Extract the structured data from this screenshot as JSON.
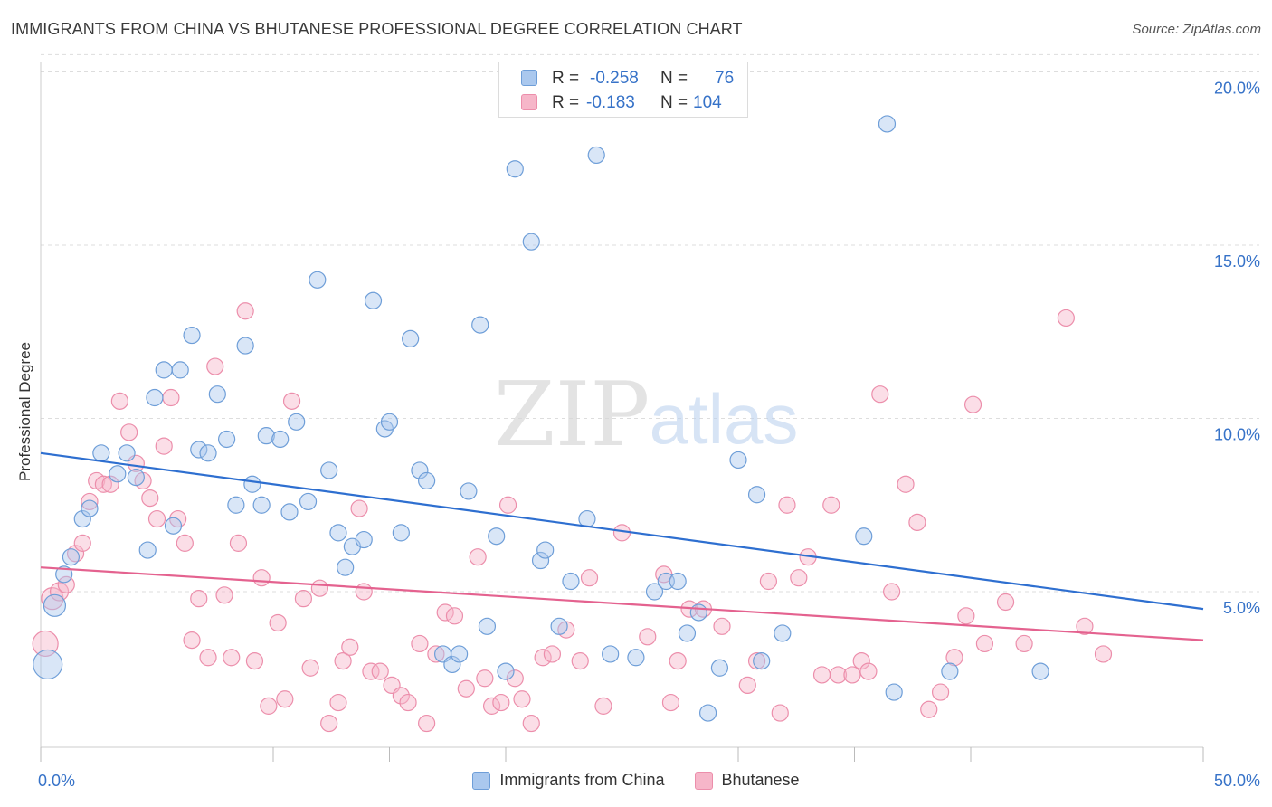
{
  "title": "IMMIGRANTS FROM CHINA VS BHUTANESE PROFESSIONAL DEGREE CORRELATION CHART",
  "source": "Source: ZipAtlas.com",
  "watermark": {
    "zip": "ZIP",
    "atlas": "atlas"
  },
  "stats_legend": {
    "r_label": "R =",
    "n_label": "N =",
    "rows": [
      {
        "r": "-0.258",
        "n": "76"
      },
      {
        "r": "-0.183",
        "n": "104"
      }
    ]
  },
  "colors": {
    "blue_fill": "#aac8ee",
    "blue_stroke": "#6e9ed8",
    "blue_line": "#2e6fd0",
    "pink_fill": "#f6b6c9",
    "pink_stroke": "#ec8eab",
    "pink_line": "#e4628f",
    "tick_label": "#3672c8",
    "grid": "#dddddd"
  },
  "chart_data": {
    "type": "scatter",
    "title": "IMMIGRANTS FROM CHINA VS BHUTANESE PROFESSIONAL DEGREE CORRELATION CHART",
    "xlabel": "",
    "ylabel": "Professional Degree",
    "xlim": [
      0,
      50
    ],
    "ylim": [
      0,
      20.5
    ],
    "x_tick_labels": [
      "0.0%",
      "50.0%"
    ],
    "y_ticks": [
      5,
      10,
      15,
      20
    ],
    "y_tick_labels": [
      "5.0%",
      "10.0%",
      "15.0%",
      "20.0%"
    ],
    "grid": "horizontal dashed",
    "legend_position": "bottom-center",
    "series": [
      {
        "name": "Immigrants from China",
        "trend": {
          "x": [
            0,
            50
          ],
          "y": [
            9.0,
            4.5
          ]
        },
        "points": [
          [
            0.3,
            2.9,
            16
          ],
          [
            0.6,
            4.6,
            12
          ],
          [
            1.0,
            5.5,
            9
          ],
          [
            1.3,
            6.0,
            9
          ],
          [
            1.8,
            7.1,
            9
          ],
          [
            2.1,
            7.4,
            9
          ],
          [
            2.6,
            9.0,
            9
          ],
          [
            3.3,
            8.4,
            9
          ],
          [
            3.7,
            9.0,
            9
          ],
          [
            4.1,
            8.3,
            9
          ],
          [
            4.6,
            6.2,
            9
          ],
          [
            4.9,
            10.6,
            9
          ],
          [
            5.3,
            11.4,
            9
          ],
          [
            5.7,
            6.9,
            9
          ],
          [
            6.0,
            11.4,
            9
          ],
          [
            6.5,
            12.4,
            9
          ],
          [
            6.8,
            9.1,
            9
          ],
          [
            7.2,
            9.0,
            9
          ],
          [
            7.6,
            10.7,
            9
          ],
          [
            8.0,
            9.4,
            9
          ],
          [
            8.4,
            7.5,
            9
          ],
          [
            8.8,
            12.1,
            9
          ],
          [
            9.1,
            8.1,
            9
          ],
          [
            9.5,
            7.5,
            9
          ],
          [
            9.7,
            9.5,
            9
          ],
          [
            10.3,
            9.4,
            9
          ],
          [
            10.7,
            7.3,
            9
          ],
          [
            11.0,
            9.9,
            9
          ],
          [
            11.5,
            7.6,
            9
          ],
          [
            11.9,
            14.0,
            9
          ],
          [
            12.4,
            8.5,
            9
          ],
          [
            12.8,
            6.7,
            9
          ],
          [
            13.1,
            5.7,
            9
          ],
          [
            13.4,
            6.3,
            9
          ],
          [
            13.9,
            6.5,
            9
          ],
          [
            14.3,
            13.4,
            9
          ],
          [
            14.8,
            9.7,
            9
          ],
          [
            15.0,
            9.9,
            9
          ],
          [
            15.5,
            6.7,
            9
          ],
          [
            15.9,
            12.3,
            9
          ],
          [
            16.3,
            8.5,
            9
          ],
          [
            16.6,
            8.2,
            9
          ],
          [
            17.3,
            3.2,
            9
          ],
          [
            17.7,
            2.9,
            9
          ],
          [
            18.4,
            7.9,
            9
          ],
          [
            18.9,
            12.7,
            9
          ],
          [
            19.2,
            4.0,
            9
          ],
          [
            19.6,
            6.6,
            9
          ],
          [
            20.0,
            2.7,
            9
          ],
          [
            20.4,
            17.2,
            9
          ],
          [
            21.1,
            15.1,
            9
          ],
          [
            21.5,
            5.9,
            9
          ],
          [
            21.7,
            6.2,
            9
          ],
          [
            22.3,
            4.0,
            9
          ],
          [
            22.8,
            5.3,
            9
          ],
          [
            23.5,
            7.1,
            9
          ],
          [
            23.9,
            17.6,
            9
          ],
          [
            24.5,
            3.2,
            9
          ],
          [
            25.6,
            3.1,
            9
          ],
          [
            26.4,
            5.0,
            9
          ],
          [
            26.9,
            5.3,
            9
          ],
          [
            27.4,
            5.3,
            9
          ],
          [
            27.8,
            3.8,
            9
          ],
          [
            28.3,
            4.4,
            9
          ],
          [
            28.7,
            1.5,
            9
          ],
          [
            29.2,
            2.8,
            9
          ],
          [
            30.0,
            8.8,
            9
          ],
          [
            30.8,
            7.8,
            9
          ],
          [
            31.0,
            3.0,
            9
          ],
          [
            31.9,
            3.8,
            9
          ],
          [
            35.4,
            6.6,
            9
          ],
          [
            36.4,
            18.5,
            9
          ],
          [
            36.7,
            2.1,
            9
          ],
          [
            39.1,
            2.7,
            9
          ],
          [
            43.0,
            2.7,
            9
          ],
          [
            18.0,
            3.2,
            9
          ]
        ]
      },
      {
        "name": "Bhutanese",
        "trend": {
          "x": [
            0,
            50
          ],
          "y": [
            5.7,
            3.6
          ]
        },
        "points": [
          [
            0.2,
            3.5,
            14
          ],
          [
            0.5,
            4.8,
            12
          ],
          [
            0.8,
            5.0,
            10
          ],
          [
            1.1,
            5.2,
            9
          ],
          [
            1.5,
            6.1,
            9
          ],
          [
            1.8,
            6.4,
            9
          ],
          [
            2.1,
            7.6,
            9
          ],
          [
            2.4,
            8.2,
            9
          ],
          [
            2.7,
            8.1,
            9
          ],
          [
            3.0,
            8.1,
            9
          ],
          [
            3.4,
            10.5,
            9
          ],
          [
            3.8,
            9.6,
            9
          ],
          [
            4.1,
            8.7,
            9
          ],
          [
            4.4,
            8.2,
            9
          ],
          [
            4.7,
            7.7,
            9
          ],
          [
            5.0,
            7.1,
            9
          ],
          [
            5.3,
            9.2,
            9
          ],
          [
            5.6,
            10.6,
            9
          ],
          [
            5.9,
            7.1,
            9
          ],
          [
            6.2,
            6.4,
            9
          ],
          [
            6.5,
            3.6,
            9
          ],
          [
            6.8,
            4.8,
            9
          ],
          [
            7.2,
            3.1,
            9
          ],
          [
            7.5,
            11.5,
            9
          ],
          [
            7.9,
            4.9,
            9
          ],
          [
            8.2,
            3.1,
            9
          ],
          [
            8.5,
            6.4,
            9
          ],
          [
            8.8,
            13.1,
            9
          ],
          [
            9.2,
            3.0,
            9
          ],
          [
            9.5,
            5.4,
            9
          ],
          [
            9.8,
            1.7,
            9
          ],
          [
            10.2,
            4.1,
            9
          ],
          [
            10.5,
            1.9,
            9
          ],
          [
            10.8,
            10.5,
            9
          ],
          [
            11.3,
            4.8,
            9
          ],
          [
            11.6,
            2.8,
            9
          ],
          [
            12.0,
            5.1,
            9
          ],
          [
            12.4,
            1.2,
            9
          ],
          [
            12.8,
            1.8,
            9
          ],
          [
            13.0,
            3.0,
            9
          ],
          [
            13.3,
            3.4,
            9
          ],
          [
            13.7,
            7.4,
            9
          ],
          [
            13.9,
            5.0,
            9
          ],
          [
            14.2,
            2.7,
            9
          ],
          [
            14.6,
            2.7,
            9
          ],
          [
            15.1,
            2.3,
            9
          ],
          [
            15.5,
            2.0,
            9
          ],
          [
            15.8,
            1.8,
            9
          ],
          [
            16.3,
            3.5,
            9
          ],
          [
            16.6,
            1.2,
            9
          ],
          [
            17.0,
            3.2,
            9
          ],
          [
            17.4,
            4.4,
            9
          ],
          [
            17.8,
            4.3,
            9
          ],
          [
            18.3,
            2.2,
            9
          ],
          [
            18.8,
            6.0,
            9
          ],
          [
            19.1,
            2.5,
            9
          ],
          [
            19.4,
            1.7,
            9
          ],
          [
            19.8,
            1.8,
            9
          ],
          [
            20.1,
            7.5,
            9
          ],
          [
            20.4,
            2.5,
            9
          ],
          [
            20.7,
            1.9,
            9
          ],
          [
            21.1,
            1.2,
            9
          ],
          [
            21.6,
            3.1,
            9
          ],
          [
            22.0,
            3.2,
            9
          ],
          [
            22.6,
            3.9,
            9
          ],
          [
            23.2,
            3.0,
            9
          ],
          [
            23.6,
            5.4,
            9
          ],
          [
            24.2,
            1.7,
            9
          ],
          [
            25.0,
            6.7,
            9
          ],
          [
            26.1,
            3.7,
            9
          ],
          [
            26.8,
            5.5,
            9
          ],
          [
            27.1,
            1.8,
            9
          ],
          [
            27.4,
            3.0,
            9
          ],
          [
            27.9,
            4.5,
            9
          ],
          [
            28.5,
            4.5,
            9
          ],
          [
            29.3,
            4.0,
            9
          ],
          [
            30.4,
            2.3,
            9
          ],
          [
            30.8,
            3.0,
            9
          ],
          [
            31.3,
            5.3,
            9
          ],
          [
            31.8,
            1.5,
            9
          ],
          [
            32.1,
            7.5,
            9
          ],
          [
            32.6,
            5.4,
            9
          ],
          [
            33.0,
            6.0,
            9
          ],
          [
            33.6,
            2.6,
            9
          ],
          [
            34.0,
            7.5,
            9
          ],
          [
            34.3,
            2.6,
            9
          ],
          [
            34.9,
            2.6,
            9
          ],
          [
            35.3,
            3.0,
            9
          ],
          [
            35.6,
            2.7,
            9
          ],
          [
            36.1,
            10.7,
            9
          ],
          [
            36.6,
            5.0,
            9
          ],
          [
            37.2,
            8.1,
            9
          ],
          [
            37.7,
            7.0,
            9
          ],
          [
            38.2,
            1.6,
            9
          ],
          [
            38.7,
            2.1,
            9
          ],
          [
            39.3,
            3.1,
            9
          ],
          [
            39.8,
            4.3,
            9
          ],
          [
            40.1,
            10.4,
            9
          ],
          [
            40.6,
            3.5,
            9
          ],
          [
            41.5,
            4.7,
            9
          ],
          [
            42.3,
            3.5,
            9
          ],
          [
            44.1,
            12.9,
            9
          ],
          [
            44.9,
            4.0,
            9
          ],
          [
            45.7,
            3.2,
            9
          ]
        ]
      }
    ]
  }
}
